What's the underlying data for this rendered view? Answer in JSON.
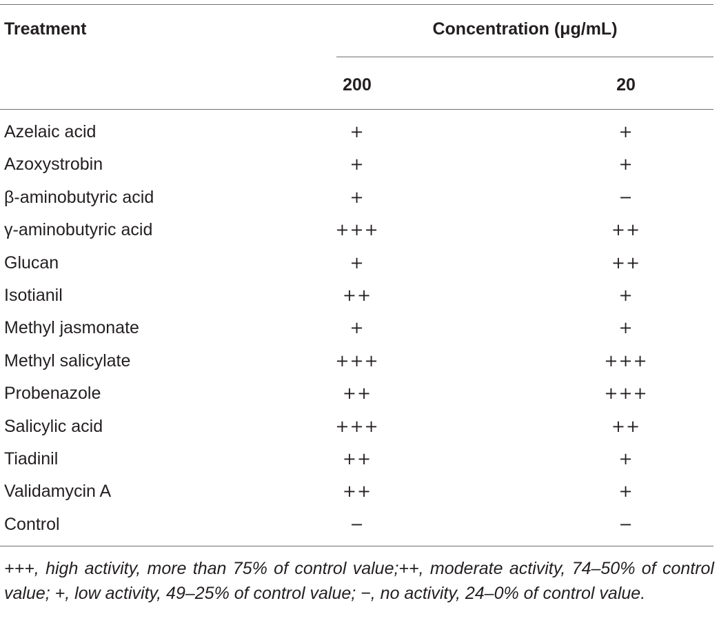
{
  "table": {
    "header": {
      "treatment": "Treatment",
      "concentration": "Concentration (μg/mL)",
      "col_200": "200",
      "col_20": "20"
    },
    "rows": [
      {
        "treatment": "Azelaic acid",
        "c200": "+",
        "c20": "+"
      },
      {
        "treatment": "Azoxystrobin",
        "c200": "+",
        "c20": "+"
      },
      {
        "treatment": "β-aminobutyric acid",
        "c200": "+",
        "c20": "−"
      },
      {
        "treatment": "γ-aminobutyric acid",
        "c200": "+++",
        "c20": "++"
      },
      {
        "treatment": "Glucan",
        "c200": "+",
        "c20": "++"
      },
      {
        "treatment": "Isotianil",
        "c200": "++",
        "c20": "+"
      },
      {
        "treatment": "Methyl jasmonate",
        "c200": "+",
        "c20": "+"
      },
      {
        "treatment": "Methyl salicylate",
        "c200": "+++",
        "c20": "+++"
      },
      {
        "treatment": "Probenazole",
        "c200": "++",
        "c20": "+++"
      },
      {
        "treatment": "Salicylic acid",
        "c200": "+++",
        "c20": "++"
      },
      {
        "treatment": "Tiadinil",
        "c200": "++",
        "c20": "+"
      },
      {
        "treatment": "Validamycin A",
        "c200": "++",
        "c20": "+"
      },
      {
        "treatment": "Control",
        "c200": "−",
        "c20": "−"
      }
    ],
    "footnote": "+++, high activity, more than 75% of control value;++, moderate activity, 74–50% of control value; +, low activity, 49–25% of control value; −, no activity, 24–0% of control value."
  }
}
